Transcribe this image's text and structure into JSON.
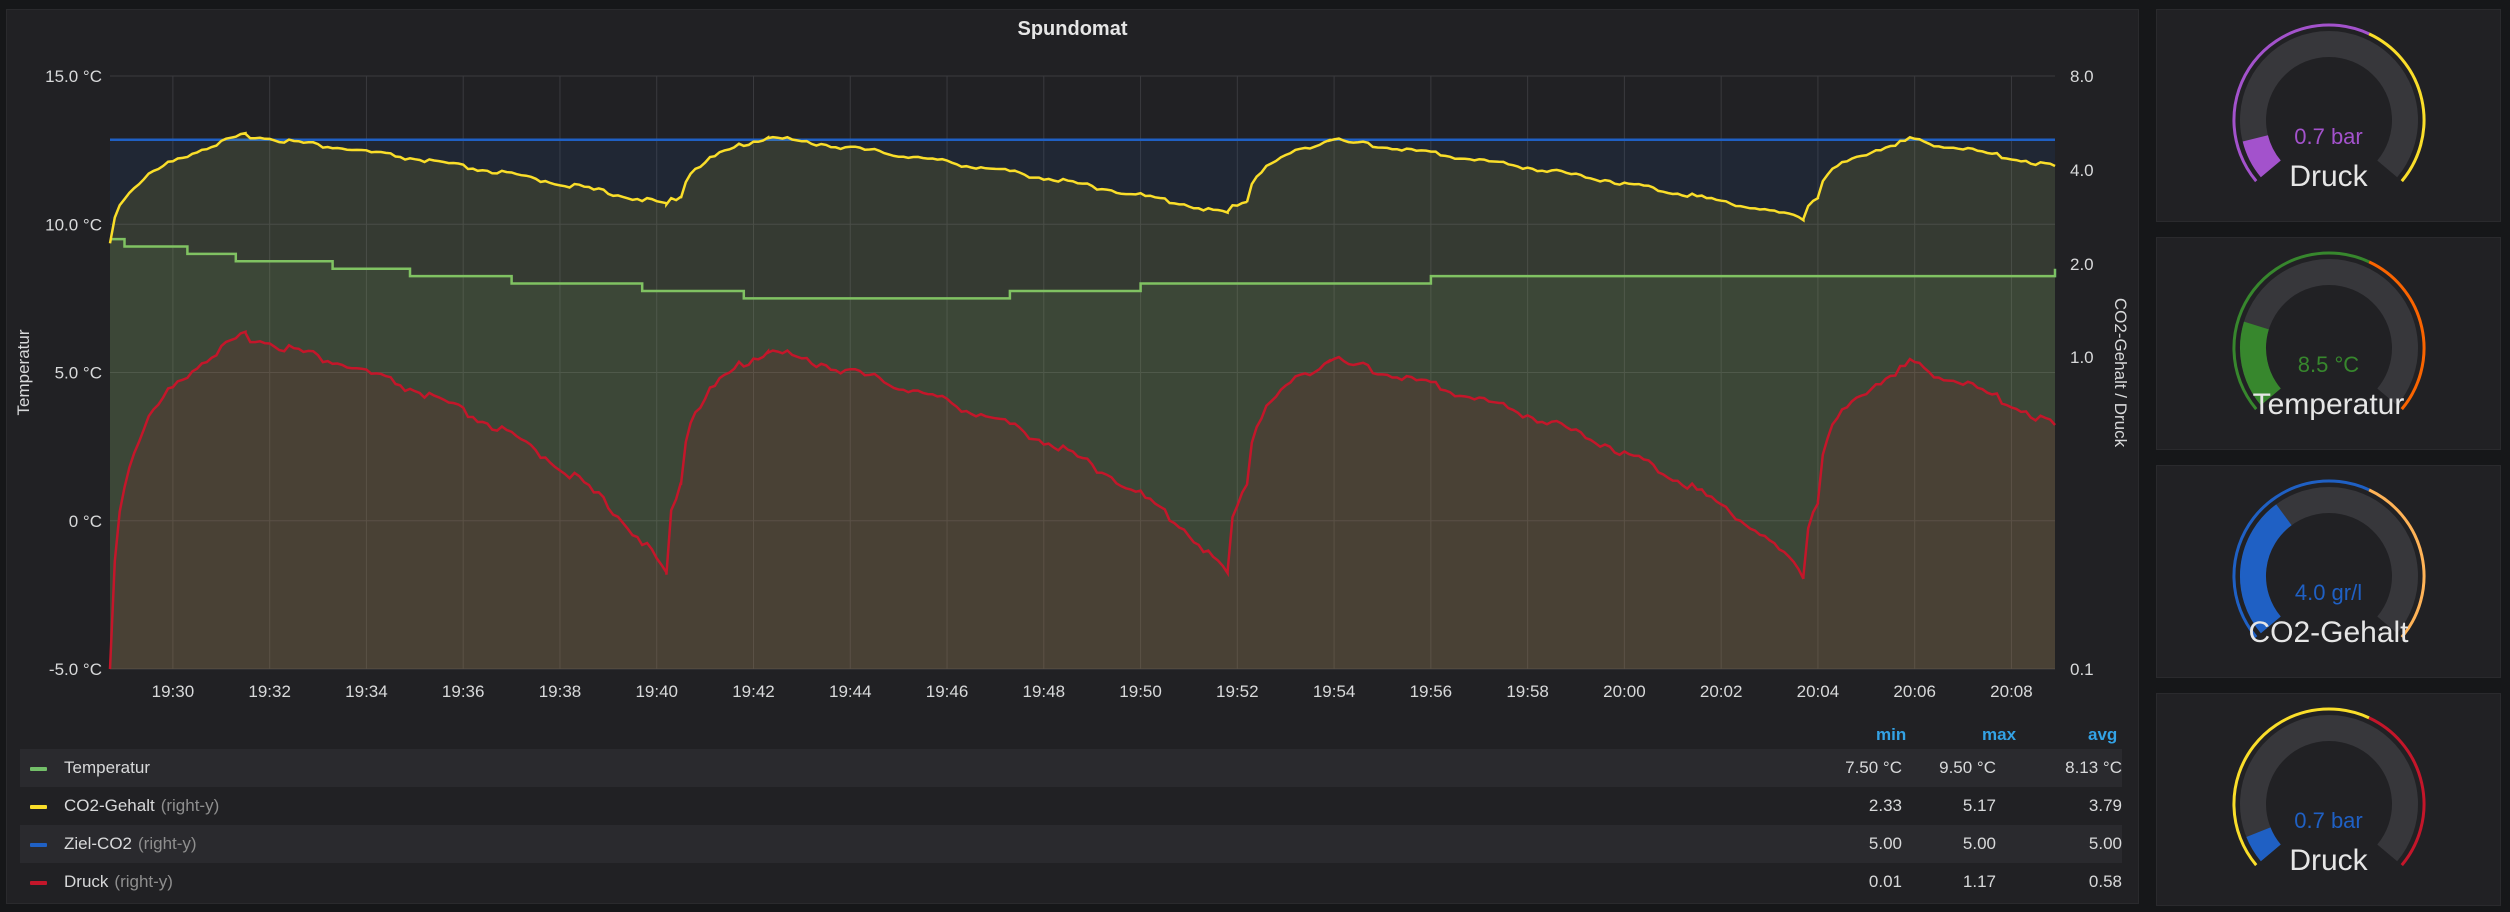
{
  "panel": {
    "title": "Spundomat"
  },
  "chart_data": {
    "type": "line",
    "title": "Spundomat",
    "ylabel": "Temperatur",
    "y2label": "CO2-Gehalt / Druck",
    "y_ticks": [
      "15.0 °C",
      "10.0 °C",
      "5.0 °C",
      "0 °C",
      "-5.0 °C"
    ],
    "ylim": [
      -5,
      15
    ],
    "y2_ticks": [
      "8.0",
      "4.0",
      "2.0",
      "1.0",
      "0.1"
    ],
    "y2_scale": "log",
    "x_ticks": [
      "19:30",
      "19:32",
      "19:34",
      "19:36",
      "19:38",
      "19:40",
      "19:42",
      "19:44",
      "19:46",
      "19:48",
      "19:50",
      "19:52",
      "19:54",
      "19:56",
      "19:58",
      "20:00",
      "20:02",
      "20:04",
      "20:06",
      "20:08"
    ],
    "grid": true,
    "colors": {
      "temperature": "#73bf69",
      "co2": "#fade2a",
      "target_co2": "#1f60c4",
      "pressure": "#c4162a"
    },
    "series": [
      {
        "name": "Temperatur",
        "axis": "left",
        "x": [
          19.467,
          19.5,
          19.6,
          19.7,
          19.8,
          19.9,
          20.0,
          20.1,
          20.2,
          20.3,
          20.4,
          20.5,
          20.6,
          20.7,
          20.8,
          20.9,
          21.0,
          21.1,
          21.2,
          21.3,
          21.4,
          21.5,
          21.6,
          21.7,
          21.8,
          21.9,
          22.0,
          22.1,
          22.2,
          22.3,
          22.4,
          22.5,
          22.6,
          22.7,
          22.8,
          22.9,
          23.0,
          23.1,
          23.2,
          23.3,
          23.4,
          23.5,
          23.6,
          23.7,
          23.8,
          23.9,
          24.0,
          24.1,
          24.2,
          24.3,
          24.4,
          24.5,
          24.6,
          24.7,
          24.8,
          24.9,
          25.0,
          25.1,
          25.2,
          25.3,
          25.4,
          25.5,
          25.6,
          25.7,
          25.8,
          25.9,
          26.0,
          26.1,
          26.2,
          26.3,
          26.4,
          26.5,
          26.6,
          26.7,
          26.8,
          26.9,
          27.0,
          27.1,
          27.2,
          27.3,
          27.4,
          27.5,
          27.6,
          27.7,
          27.8,
          27.9,
          28.0,
          28.1,
          28.2,
          28.3,
          28.4,
          28.5,
          28.6,
          28.7,
          28.8,
          28.9,
          29.0,
          29.1,
          29.2,
          29.3,
          29.4,
          29.5,
          29.6,
          29.7,
          29.8,
          29.9,
          30.0,
          30.1,
          30.2,
          30.3,
          30.4,
          30.5,
          30.6,
          30.7,
          30.8,
          30.9,
          31.0,
          31.1,
          31.2,
          31.3,
          31.4,
          31.5,
          31.6,
          31.7,
          31.8,
          31.9,
          32.0,
          32.1,
          32.2,
          32.3,
          32.4,
          32.5,
          32.6,
          32.7,
          32.8,
          32.9,
          33.0,
          33.1,
          33.2,
          33.3,
          33.4,
          33.5,
          33.6,
          33.7,
          33.8,
          33.9,
          34.0,
          34.1,
          34.2,
          34.3,
          34.4,
          34.5,
          34.6,
          34.7,
          34.8,
          34.9,
          35.0,
          35.1,
          35.2,
          35.3,
          35.4,
          35.5,
          35.6,
          35.7,
          35.8,
          35.9,
          36.0,
          36.1,
          36.2,
          36.3,
          36.4,
          36.5,
          36.6,
          36.7,
          36.8,
          36.9,
          37.0,
          37.1,
          37.2,
          37.3,
          37.4,
          37.5,
          37.6,
          37.7,
          37.8,
          37.9,
          38.0,
          38.1,
          38.2,
          38.3,
          38.4,
          38.5,
          38.6,
          38.7,
          38.8,
          38.9,
          39.0,
          39.1,
          39.2,
          39.3,
          39.4,
          39.5,
          39.6,
          39.7,
          39.8,
          39.9,
          40.0,
          40.1,
          40.2,
          40.3,
          40.4,
          40.5,
          40.6,
          40.7,
          40.8,
          40.9,
          41.0,
          41.1,
          41.2,
          41.3,
          41.4,
          41.5,
          41.6,
          41.7,
          41.8,
          41.9,
          42.0,
          42.1,
          42.2,
          42.3,
          42.4,
          42.5,
          42.6,
          42.7,
          42.8,
          42.9,
          43.0,
          43.1,
          43.2,
          43.3,
          43.4,
          43.5,
          43.6,
          43.7,
          43.8,
          43.9,
          44.0,
          44.1,
          44.2,
          44.3,
          44.4,
          44.5,
          44.6,
          44.7,
          44.8,
          44.9,
          45.0,
          45.1,
          45.2,
          45.3,
          45.4,
          45.5,
          45.6,
          45.7,
          45.8,
          45.9,
          46.0,
          46.1,
          46.2,
          46.3,
          46.4,
          46.5,
          46.6,
          46.7,
          46.8,
          46.9,
          47.0,
          47.1,
          47.2,
          47.3,
          47.4,
          47.5,
          47.6,
          47.7,
          47.8,
          47.9,
          48.0,
          48.1,
          48.2,
          48.3,
          48.4,
          48.5,
          48.6,
          48.7,
          48.8,
          48.9,
          49.0,
          49.1,
          49.2,
          49.3,
          49.4,
          49.5,
          49.6,
          49.7,
          49.8,
          49.9,
          50.0,
          50.1,
          50.2,
          50.3,
          50.4,
          50.5,
          50.6,
          50.7,
          50.8,
          50.9,
          51.0,
          51.1,
          51.2,
          51.3,
          51.4,
          51.5,
          51.6,
          51.7,
          51.8,
          51.9,
          52.0,
          52.1,
          52.2,
          52.3,
          52.4,
          52.5,
          52.6,
          52.7,
          52.8,
          52.9,
          53.0,
          53.1,
          53.2,
          53.3,
          53.4,
          53.5,
          53.6,
          53.7,
          53.8,
          53.9,
          54.0,
          54.1,
          54.2,
          54.3,
          54.4,
          54.5,
          54.6,
          54.7,
          54.8,
          54.9,
          55.0,
          55.1,
          55.2,
          55.3,
          55.4,
          55.5,
          55.6,
          55.7,
          55.8,
          55.9,
          56.0,
          56.1,
          56.2,
          56.3,
          56.4,
          56.5,
          56.6,
          56.7,
          56.8,
          56.9,
          57.0,
          57.1,
          57.2,
          57.3,
          57.4,
          57.5,
          57.6,
          57.7,
          57.8,
          57.9,
          58.0,
          58.1,
          58.2,
          58.3,
          58.4,
          58.5,
          58.6,
          58.7,
          58.8,
          58.9,
          59.0,
          59.1,
          59.2,
          59.3,
          59.4,
          59.5,
          59.6,
          59.7,
          59.8,
          59.9,
          60.0,
          60.1,
          60.2,
          60.3,
          60.4,
          60.5,
          60.6,
          60.7,
          60.8,
          60.9,
          61.0,
          61.1,
          61.2,
          61.3,
          61.4,
          61.5,
          61.6,
          61.7,
          61.8,
          61.9,
          62.0,
          62.1,
          62.2,
          62.3,
          62.4,
          62.5,
          62.6,
          62.7,
          62.8,
          62.9,
          63.0,
          63.1,
          63.2,
          63.3,
          63.4,
          63.5,
          63.6,
          63.7,
          63.8,
          63.9,
          64.0,
          64.1,
          64.2,
          64.3,
          64.4,
          64.5,
          64.6,
          64.7,
          64.8,
          64.9,
          65.0,
          65.1,
          65.2,
          65.3,
          65.4,
          65.5,
          65.6,
          65.7,
          65.8,
          65.9,
          66.0,
          66.1,
          66.2,
          66.3,
          66.4,
          66.5,
          66.6,
          66.7,
          66.8,
          66.9,
          67.0,
          67.1,
          67.2,
          67.3,
          67.4,
          67.5,
          67.6,
          67.7,
          67.8,
          67.9,
          68.0,
          68.1,
          68.2,
          68.3,
          68.4,
          68.5,
          68.6,
          68.7,
          68.8,
          68.9,
          69.0
        ],
        "note_x": "minutes after 19:00",
        "values_steps": [
          [
            28.7,
            9.5
          ],
          [
            29.0,
            9.25
          ],
          [
            30.3,
            9.0
          ],
          [
            31.3,
            8.75
          ],
          [
            33.3,
            8.5
          ],
          [
            34.9,
            8.25
          ],
          [
            37.0,
            8.0
          ],
          [
            39.7,
            7.75
          ],
          [
            41.8,
            7.5
          ],
          [
            47.3,
            7.75
          ],
          [
            50.0,
            8.0
          ],
          [
            55.7,
            8.0
          ],
          [
            56.0,
            8.25
          ],
          [
            57.0,
            8.25
          ],
          [
            68.9,
            8.5
          ]
        ]
      },
      {
        "name": "CO2-Gehalt",
        "axis": "right",
        "cycles": [
          [
            28.7,
            2.33
          ],
          [
            31.5,
            5.17
          ],
          [
            40.2,
            3.1
          ],
          [
            40.5,
            3.3
          ],
          [
            42.3,
            5.1
          ],
          [
            51.8,
            2.9
          ],
          [
            52.2,
            3.2
          ],
          [
            53.9,
            5.0
          ],
          [
            63.7,
            2.8
          ],
          [
            64.0,
            3.3
          ],
          [
            65.9,
            5.0
          ],
          [
            68.9,
            4.1
          ]
        ]
      },
      {
        "name": "Ziel-CO2",
        "axis": "right",
        "values": [
          5.0,
          5.0
        ]
      },
      {
        "name": "Druck",
        "axis": "right",
        "cycles": [
          [
            28.7,
            0.01
          ],
          [
            31.5,
            1.17
          ],
          [
            40.2,
            0.2
          ],
          [
            40.5,
            0.4
          ],
          [
            42.3,
            1.05
          ],
          [
            51.8,
            0.2
          ],
          [
            52.2,
            0.4
          ],
          [
            53.9,
            0.98
          ],
          [
            63.7,
            0.2
          ],
          [
            64.0,
            0.35
          ],
          [
            65.9,
            0.95
          ],
          [
            68.9,
            0.6
          ]
        ]
      }
    ]
  },
  "legend": {
    "headers": {
      "min": "min",
      "max": "max",
      "avg": "avg"
    },
    "rows": [
      {
        "name": "Temperatur",
        "axis": "",
        "min": "7.50 °C",
        "max": "9.50 °C",
        "avg": "8.13 °C",
        "color": "#73bf69"
      },
      {
        "name": "CO2-Gehalt",
        "axis": "(right-y)",
        "min": "2.33",
        "max": "5.17",
        "avg": "3.79",
        "color": "#fade2a"
      },
      {
        "name": "Ziel-CO2",
        "axis": "(right-y)",
        "min": "5.00",
        "max": "5.00",
        "avg": "5.00",
        "color": "#1f60c4"
      },
      {
        "name": "Druck",
        "axis": "(right-y)",
        "min": "0.01",
        "max": "1.17",
        "avg": "0.58",
        "color": "#c4162a"
      }
    ]
  },
  "gauges": [
    {
      "label": "Druck",
      "value": "0.7 bar",
      "fraction": 0.1,
      "color": "#a352cc",
      "thresholds": [
        "#a352cc",
        "#fade2a"
      ]
    },
    {
      "label": "Temperatur",
      "value": "8.5 °C",
      "fraction": 0.22,
      "color": "#37872d",
      "thresholds": [
        "#37872d",
        "#fa6400"
      ]
    },
    {
      "label": "CO2-Gehalt",
      "value": "4.0 gr/l",
      "fraction": 0.36,
      "color": "#1f60c4",
      "thresholds": [
        "#1f60c4",
        "#ffb357"
      ]
    },
    {
      "label": "Druck",
      "value": "0.7 bar",
      "fraction": 0.07,
      "color": "#1f60c4",
      "thresholds": [
        "#fade2a",
        "#c4162a"
      ]
    }
  ]
}
